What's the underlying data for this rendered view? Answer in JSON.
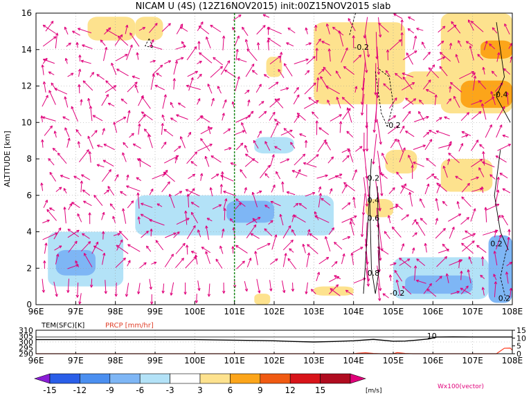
{
  "title": "NICAM U (4S) (12Z16NOV2015) init:00Z15NOV2015 slab",
  "main_chart": {
    "type": "heatmap",
    "ylabel": "ALTITUDE [km]",
    "xlim": [
      96,
      108
    ],
    "ylim": [
      0,
      16
    ],
    "x_ticks": [
      "96E",
      "97E",
      "98E",
      "99E",
      "100E",
      "101E",
      "102E",
      "103E",
      "104E",
      "105E",
      "106E",
      "107E",
      "108E"
    ],
    "y_ticks": [
      "0",
      "2",
      "4",
      "6",
      "8",
      "10",
      "12",
      "14",
      "16"
    ],
    "marker_line_lon": 101,
    "contour_labels": [
      {
        "text": "-0.2",
        "lon": 104.2,
        "alt": 14.0
      },
      {
        "text": "-0.2",
        "lon": 105.0,
        "alt": 9.7
      },
      {
        "text": "-0.4",
        "lon": 107.7,
        "alt": 11.4
      },
      {
        "text": "0.2",
        "lon": 107.6,
        "alt": 3.2
      },
      {
        "text": "-0.2",
        "lon": 105.1,
        "alt": 0.5
      },
      {
        "text": "0.2",
        "lon": 107.8,
        "alt": 0.2
      },
      {
        "text": "0.2",
        "lon": 104.5,
        "alt": 6.8
      },
      {
        "text": "0.4",
        "lon": 104.5,
        "alt": 5.6
      },
      {
        "text": "0.6",
        "lon": 104.5,
        "alt": 4.6
      },
      {
        "text": "0.8",
        "lon": 104.5,
        "alt": 1.6
      }
    ],
    "shading_regions": [
      {
        "lon0": 96.3,
        "lon1": 98.2,
        "alt0": 1.0,
        "alt1": 4.0,
        "value": -6
      },
      {
        "lon0": 96.5,
        "lon1": 97.5,
        "alt0": 1.6,
        "alt1": 3.0,
        "value": -9
      },
      {
        "lon0": 98.5,
        "lon1": 103.5,
        "alt0": 3.8,
        "alt1": 6.0,
        "value": -6
      },
      {
        "lon0": 100.8,
        "lon1": 102.0,
        "alt0": 4.5,
        "alt1": 5.7,
        "value": -9
      },
      {
        "lon0": 97.5,
        "lon1": 102.5,
        "alt0": 0.8,
        "alt1": 3.5,
        "value": -3
      },
      {
        "lon0": 99.5,
        "lon1": 104.0,
        "alt0": 7.0,
        "alt1": 9.8,
        "value": -3
      },
      {
        "lon0": 101.5,
        "lon1": 102.5,
        "alt0": 8.3,
        "alt1": 9.2,
        "value": -6
      },
      {
        "lon0": 96.0,
        "lon1": 97.0,
        "alt0": 8.5,
        "alt1": 16.0,
        "value": -3
      },
      {
        "lon0": 97.5,
        "lon1": 99.5,
        "alt0": 10.0,
        "alt1": 12.5,
        "value": -3
      },
      {
        "lon0": 99.2,
        "lon1": 101.0,
        "alt0": 13.5,
        "alt1": 15.8,
        "value": -3
      },
      {
        "lon0": 104.5,
        "lon1": 108.0,
        "alt0": 0.0,
        "alt1": 3.5,
        "value": -3
      },
      {
        "lon0": 105.0,
        "lon1": 107.4,
        "alt0": 0.3,
        "alt1": 2.6,
        "value": -6
      },
      {
        "lon0": 105.3,
        "lon1": 107.0,
        "alt0": 0.6,
        "alt1": 1.6,
        "value": -9
      },
      {
        "lon0": 107.4,
        "lon1": 108.0,
        "alt0": 0.1,
        "alt1": 3.8,
        "value": -9
      },
      {
        "lon0": 104.0,
        "lon1": 106.0,
        "alt0": 3.5,
        "alt1": 8.0,
        "value": -3
      },
      {
        "lon0": 98.5,
        "lon1": 99.2,
        "alt0": 14.5,
        "alt1": 15.8,
        "value": 3
      },
      {
        "lon0": 97.3,
        "lon1": 98.5,
        "alt0": 14.5,
        "alt1": 15.8,
        "value": 3
      },
      {
        "lon0": 101.5,
        "lon1": 101.9,
        "alt0": 0.0,
        "alt1": 0.6,
        "value": 3
      },
      {
        "lon0": 103.0,
        "lon1": 104.0,
        "alt0": 0.5,
        "alt1": 1.0,
        "value": 3
      },
      {
        "lon0": 101.8,
        "lon1": 102.2,
        "alt0": 12.5,
        "alt1": 13.6,
        "value": 3
      },
      {
        "lon0": 103.0,
        "lon1": 105.3,
        "alt0": 11.0,
        "alt1": 15.5,
        "value": 3
      },
      {
        "lon0": 105.3,
        "lon1": 106.5,
        "alt0": 11.0,
        "alt1": 12.8,
        "value": 3
      },
      {
        "lon0": 106.2,
        "lon1": 108.0,
        "alt0": 10.5,
        "alt1": 16.0,
        "value": 3
      },
      {
        "lon0": 106.7,
        "lon1": 108.0,
        "alt0": 10.8,
        "alt1": 12.3,
        "value": 6
      },
      {
        "lon0": 107.2,
        "lon1": 108.0,
        "alt0": 13.5,
        "alt1": 14.5,
        "value": 6
      },
      {
        "lon0": 106.2,
        "lon1": 107.5,
        "alt0": 6.2,
        "alt1": 8.0,
        "value": 3
      },
      {
        "lon0": 104.8,
        "lon1": 105.6,
        "alt0": 7.2,
        "alt1": 8.5,
        "value": 3
      },
      {
        "lon0": 104.3,
        "lon1": 105.0,
        "alt0": 4.8,
        "alt1": 5.8,
        "value": 3
      }
    ],
    "vector_field": {
      "lon_step": 0.3,
      "alt_step": 0.8,
      "color": "#e0007a"
    }
  },
  "bottom_chart": {
    "type": "line",
    "label_tem": "TEM(SFC)[K]",
    "label_prcp": "PRCP [mm/hr]",
    "left_ticks": [
      "310",
      "305",
      "300",
      "295",
      "290"
    ],
    "right_ticks": [
      "15",
      "10",
      "5",
      "0"
    ],
    "x_ticks": [
      "96E",
      "97E",
      "98E",
      "99E",
      "100E",
      "101E",
      "102E",
      "103E",
      "104E",
      "105E",
      "106E",
      "107E",
      "108E"
    ],
    "tem_label": "10",
    "tem_ylim": [
      290,
      310
    ],
    "prcp_ylim": [
      0,
      15
    ],
    "series": [
      {
        "name": "TEM(SFC)[K]",
        "color": "#000000",
        "x": [
          96,
          97,
          98,
          99,
          100,
          101,
          102,
          102.5,
          103,
          103.5,
          104,
          104.5,
          105,
          105.3,
          105.6,
          105.9,
          106.1,
          106.5,
          107,
          108
        ],
        "y": [
          302,
          302,
          302,
          302,
          302,
          301.5,
          301,
          300.4,
          300,
          300.4,
          301,
          302.2,
          300.6,
          300.8,
          301.6,
          302.6,
          304.2,
          304.4,
          304.2,
          304.2
        ]
      },
      {
        "name": "PRCP [mm/hr]",
        "color": "#ff3b1f",
        "x": [
          96,
          104,
          104.1,
          104.3,
          104.5,
          104.7,
          105,
          105.1,
          105.3,
          105.5,
          107.6,
          107.8,
          107.95,
          108
        ],
        "y": [
          0,
          0,
          0.3,
          0.6,
          0.2,
          0,
          0,
          0.7,
          0.2,
          0,
          0,
          3.5,
          3.6,
          2.2
        ]
      }
    ]
  },
  "colorbar": {
    "labels": [
      "-15",
      "-12",
      "-9",
      "-6",
      "-3",
      "3",
      "6",
      "9",
      "12",
      "15"
    ],
    "unit": "[m/s]",
    "colors": [
      "#8a1dd6",
      "#2a5ee8",
      "#4b8ff0",
      "#7eb6f5",
      "#b3e2f7",
      "#ffffff",
      "#fde28e",
      "#fca51a",
      "#f05a12",
      "#d8141a",
      "#b00c20",
      "#e0007a"
    ],
    "vector_label": "Wx100(vector)"
  }
}
